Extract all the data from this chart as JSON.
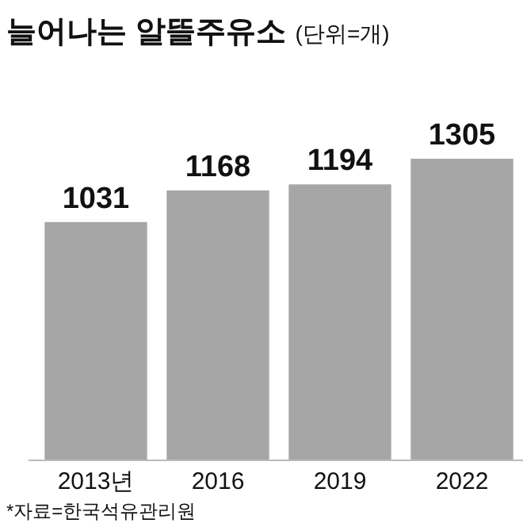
{
  "chart_data": {
    "type": "bar",
    "title": "늘어나는 알뜰주유소",
    "subtitle": "(단위=개)",
    "categories": [
      "2013년",
      "2016",
      "2019",
      "2022"
    ],
    "values": [
      1031,
      1168,
      1194,
      1305
    ],
    "color": "#a6a6a6",
    "data_labels": true,
    "annotations": [
      "*자료=한국석유관리원"
    ]
  }
}
